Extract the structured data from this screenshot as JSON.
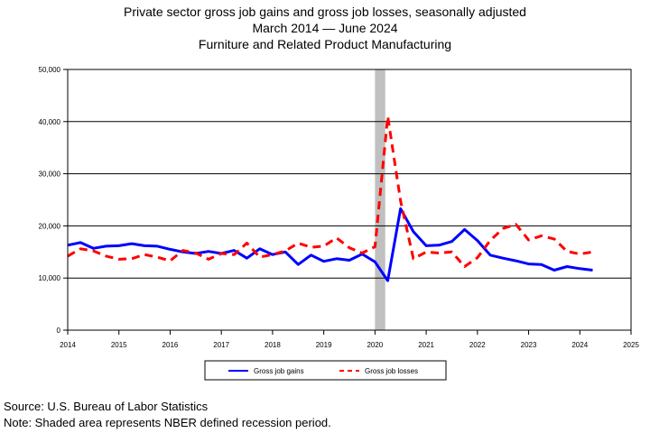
{
  "chart_data": {
    "type": "line",
    "title": "Private sector gross job gains and gross job losses, seasonally adjusted",
    "subtitle_period": "March 2014 — June 2024",
    "subtitle_industry": "Furniture and Related Product Manufacturing",
    "xlim": [
      2014,
      2025
    ],
    "ylim": [
      0,
      50000
    ],
    "x_ticks": [
      "2014",
      "2015",
      "2016",
      "2017",
      "2018",
      "2019",
      "2020",
      "2021",
      "2022",
      "2023",
      "2024",
      "2025"
    ],
    "y_ticks": [
      "0",
      "10,000",
      "20,000",
      "30,000",
      "40,000",
      "50,000"
    ],
    "y_tick_values": [
      0,
      10000,
      20000,
      30000,
      40000,
      50000
    ],
    "grid": "horizontal",
    "legend_position": "bottom",
    "recession": {
      "start": 2020.0,
      "end": 2020.2,
      "color": "#c0c0c0"
    },
    "x": [
      2014.0,
      2014.25,
      2014.5,
      2014.75,
      2015.0,
      2015.25,
      2015.5,
      2015.75,
      2016.0,
      2016.25,
      2016.5,
      2016.75,
      2017.0,
      2017.25,
      2017.5,
      2017.75,
      2018.0,
      2018.25,
      2018.5,
      2018.75,
      2019.0,
      2019.25,
      2019.5,
      2019.75,
      2020.0,
      2020.25,
      2020.5,
      2020.75,
      2021.0,
      2021.25,
      2021.5,
      2021.75,
      2022.0,
      2022.25,
      2022.5,
      2022.75,
      2023.0,
      2023.25,
      2023.5,
      2023.75,
      2024.0,
      2024.25
    ],
    "series": [
      {
        "name": "Gross job gains",
        "color": "#0000ff",
        "dash": "solid",
        "values": [
          16300,
          16800,
          15700,
          16100,
          16200,
          16600,
          16200,
          16100,
          15500,
          15000,
          14700,
          15100,
          14700,
          15300,
          13800,
          15600,
          14500,
          15000,
          12600,
          14400,
          13200,
          13700,
          13400,
          14600,
          13100,
          9500,
          23300,
          18900,
          16200,
          16300,
          17000,
          19300,
          17200,
          14400,
          13800,
          13300,
          12700,
          12600,
          11500,
          12200,
          11800,
          11500
        ]
      },
      {
        "name": "Gross job losses",
        "color": "#ff0000",
        "dash": "dashed",
        "values": [
          14200,
          15600,
          15200,
          14200,
          13600,
          13700,
          14500,
          14000,
          13300,
          15300,
          14800,
          13600,
          14700,
          14500,
          16700,
          14000,
          14500,
          15200,
          16700,
          15900,
          16100,
          17700,
          15800,
          14800,
          16000,
          41000,
          24800,
          13700,
          15000,
          14800,
          15000,
          12200,
          13900,
          17200,
          19500,
          20300,
          17300,
          18100,
          17500,
          15100,
          14600,
          15000
        ]
      }
    ]
  },
  "footer": {
    "source": "Source: U.S. Bureau of Labor Statistics",
    "note": "Note: Shaded area represents NBER defined recession period."
  }
}
